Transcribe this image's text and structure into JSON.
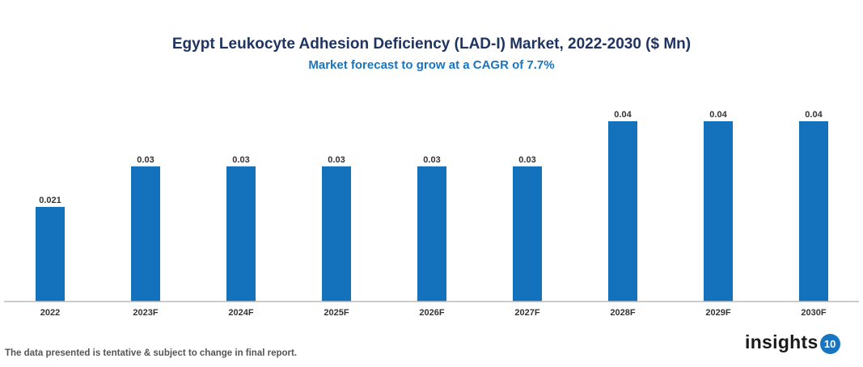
{
  "chart_data": {
    "type": "bar",
    "title": "Egypt Leukocyte Adhesion Deficiency (LAD-I) Market, 2022-2030 ($ Mn)",
    "subtitle": "Market forecast to grow at a CAGR of 7.7%",
    "categories": [
      "2022",
      "2023F",
      "2024F",
      "2025F",
      "2026F",
      "2027F",
      "2028F",
      "2029F",
      "2030F"
    ],
    "values": [
      0.021,
      0.03,
      0.03,
      0.03,
      0.03,
      0.03,
      0.04,
      0.04,
      0.04
    ],
    "data_labels": [
      "0.021",
      "0.03",
      "0.03",
      "0.03",
      "0.03",
      "0.03",
      "0.04",
      "0.04",
      "0.04"
    ],
    "xlabel": "",
    "ylabel": "",
    "ylim": [
      0,
      0.04
    ],
    "grid": false,
    "bar_color": "#1372bb",
    "title_color": "#1f3460",
    "subtitle_color": "#1a75c0"
  },
  "footer": {
    "note": "The data presented is tentative & subject to change in final report.",
    "logo_text": "insights",
    "logo_badge": "10"
  }
}
